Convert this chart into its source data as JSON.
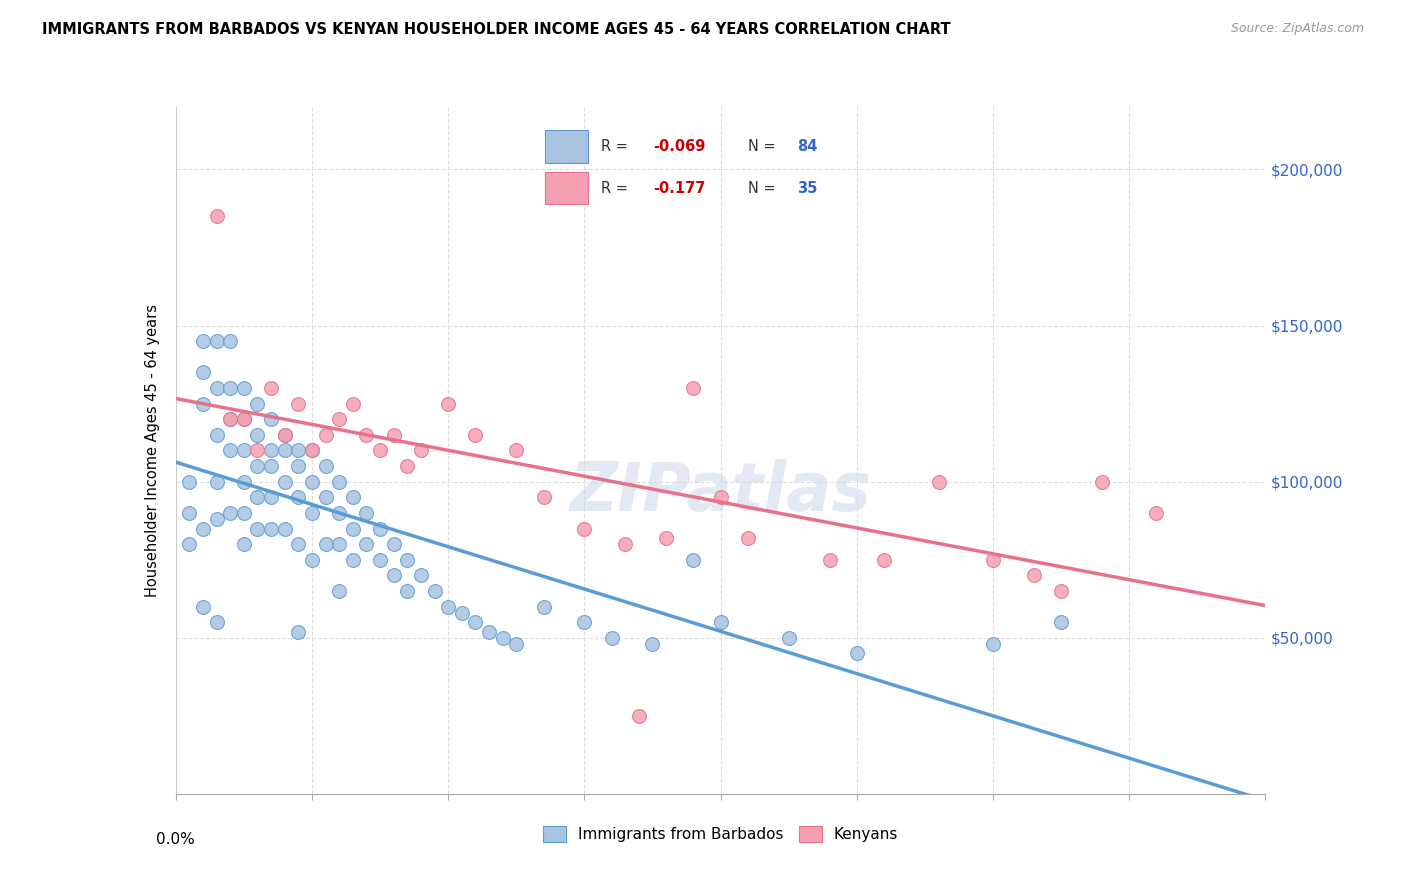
{
  "title": "IMMIGRANTS FROM BARBADOS VS KENYAN HOUSEHOLDER INCOME AGES 45 - 64 YEARS CORRELATION CHART",
  "source": "Source: ZipAtlas.com",
  "ylabel": "Householder Income Ages 45 - 64 years",
  "legend_bottom": [
    "Immigrants from Barbados",
    "Kenyans"
  ],
  "r_barbados": -0.069,
  "n_barbados": 84,
  "r_kenyans": -0.177,
  "n_kenyans": 35,
  "y_ticks": [
    0,
    50000,
    100000,
    150000,
    200000
  ],
  "y_tick_labels": [
    "",
    "$50,000",
    "$100,000",
    "$150,000",
    "$200,000"
  ],
  "x_min": 0.0,
  "x_max": 0.08,
  "y_min": 0,
  "y_max": 220000,
  "color_barbados": "#a8c4e0",
  "color_kenyans": "#f4a0b0",
  "color_line_barbados": "#5b9bd5",
  "color_line_kenyans": "#e8708a",
  "watermark": "ZIPatlas",
  "barbados_x": [
    0.001,
    0.001,
    0.001,
    0.002,
    0.002,
    0.002,
    0.002,
    0.003,
    0.003,
    0.003,
    0.003,
    0.003,
    0.004,
    0.004,
    0.004,
    0.004,
    0.004,
    0.005,
    0.005,
    0.005,
    0.005,
    0.005,
    0.005,
    0.006,
    0.006,
    0.006,
    0.006,
    0.006,
    0.007,
    0.007,
    0.007,
    0.007,
    0.007,
    0.008,
    0.008,
    0.008,
    0.008,
    0.009,
    0.009,
    0.009,
    0.009,
    0.01,
    0.01,
    0.01,
    0.01,
    0.011,
    0.011,
    0.011,
    0.012,
    0.012,
    0.012,
    0.013,
    0.013,
    0.013,
    0.014,
    0.014,
    0.015,
    0.015,
    0.016,
    0.016,
    0.017,
    0.017,
    0.018,
    0.019,
    0.02,
    0.021,
    0.022,
    0.023,
    0.024,
    0.025,
    0.027,
    0.03,
    0.032,
    0.035,
    0.038,
    0.04,
    0.045,
    0.05,
    0.06,
    0.065,
    0.002,
    0.003,
    0.009,
    0.012
  ],
  "barbados_y": [
    100000,
    90000,
    80000,
    145000,
    135000,
    125000,
    85000,
    145000,
    130000,
    115000,
    100000,
    88000,
    145000,
    130000,
    120000,
    110000,
    90000,
    130000,
    120000,
    110000,
    100000,
    90000,
    80000,
    125000,
    115000,
    105000,
    95000,
    85000,
    120000,
    110000,
    105000,
    95000,
    85000,
    115000,
    110000,
    100000,
    85000,
    110000,
    105000,
    95000,
    80000,
    110000,
    100000,
    90000,
    75000,
    105000,
    95000,
    80000,
    100000,
    90000,
    80000,
    95000,
    85000,
    75000,
    90000,
    80000,
    85000,
    75000,
    80000,
    70000,
    75000,
    65000,
    70000,
    65000,
    60000,
    58000,
    55000,
    52000,
    50000,
    48000,
    60000,
    55000,
    50000,
    48000,
    75000,
    55000,
    50000,
    45000,
    48000,
    55000,
    60000,
    55000,
    52000,
    65000
  ],
  "kenyans_x": [
    0.003,
    0.004,
    0.005,
    0.006,
    0.007,
    0.008,
    0.009,
    0.01,
    0.011,
    0.012,
    0.013,
    0.014,
    0.015,
    0.016,
    0.017,
    0.018,
    0.02,
    0.022,
    0.025,
    0.027,
    0.03,
    0.033,
    0.036,
    0.038,
    0.04,
    0.042,
    0.048,
    0.052,
    0.056,
    0.06,
    0.063,
    0.065,
    0.068,
    0.072,
    0.034
  ],
  "kenyans_y": [
    185000,
    120000,
    120000,
    110000,
    130000,
    115000,
    125000,
    110000,
    115000,
    120000,
    125000,
    115000,
    110000,
    115000,
    105000,
    110000,
    125000,
    115000,
    110000,
    95000,
    85000,
    80000,
    82000,
    130000,
    95000,
    82000,
    75000,
    75000,
    100000,
    75000,
    70000,
    65000,
    100000,
    90000,
    25000
  ]
}
